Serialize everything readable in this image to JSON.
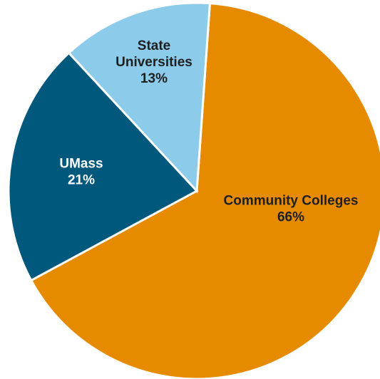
{
  "chart_data": {
    "type": "pie",
    "title": "",
    "slices": [
      {
        "label_lines": [
          "Community Colleges",
          "66%"
        ],
        "name": "Community Colleges",
        "value": 66,
        "color": "#E68A00",
        "label_color": "#1F1F1F"
      },
      {
        "label_lines": [
          "UMass",
          "21%"
        ],
        "name": "UMass",
        "value": 21,
        "color": "#00587C",
        "label_color": "#FFFFFF"
      },
      {
        "label_lines": [
          "State",
          "Universities",
          "13%"
        ],
        "name": "State Universities",
        "value": 13,
        "color": "#8CCBEA",
        "label_color": "#1F1F1F"
      }
    ],
    "start_angle_deg": 4,
    "direction": "clockwise",
    "legend": "none"
  }
}
